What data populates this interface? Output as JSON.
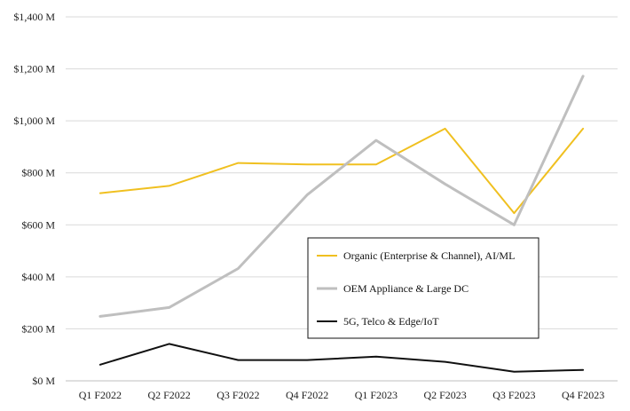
{
  "chart_data": {
    "type": "line",
    "categories": [
      "Q1 F2022",
      "Q2 F2022",
      "Q3 F2022",
      "Q4 F2022",
      "Q1 F2023",
      "Q2 F2023",
      "Q3 F2023",
      "Q4 F2023"
    ],
    "series": [
      {
        "name": "Organic (Enterprise & Channel), AI/ML",
        "color": "#f0c020",
        "values": [
          722,
          750,
          838,
          832,
          832,
          970,
          645,
          970
        ]
      },
      {
        "name": "OEM Appliance & Large DC",
        "color": "#bfbfbf",
        "values": [
          248,
          282,
          432,
          715,
          925,
          757,
          600,
          1172
        ]
      },
      {
        "name": "5G, Telco & Edge/IoT",
        "color": "#111111",
        "values": [
          62,
          142,
          80,
          80,
          93,
          73,
          35,
          42
        ]
      }
    ],
    "y_ticks": [
      "$0 M",
      "$200 M",
      "$400 M",
      "$600 M",
      "$800 M",
      "$1,000 M",
      "$1,200 M",
      "$1,400 M"
    ],
    "ylim": [
      0,
      1400
    ],
    "y_tick_step": 200,
    "grid": true,
    "legend_position": "center-right"
  }
}
